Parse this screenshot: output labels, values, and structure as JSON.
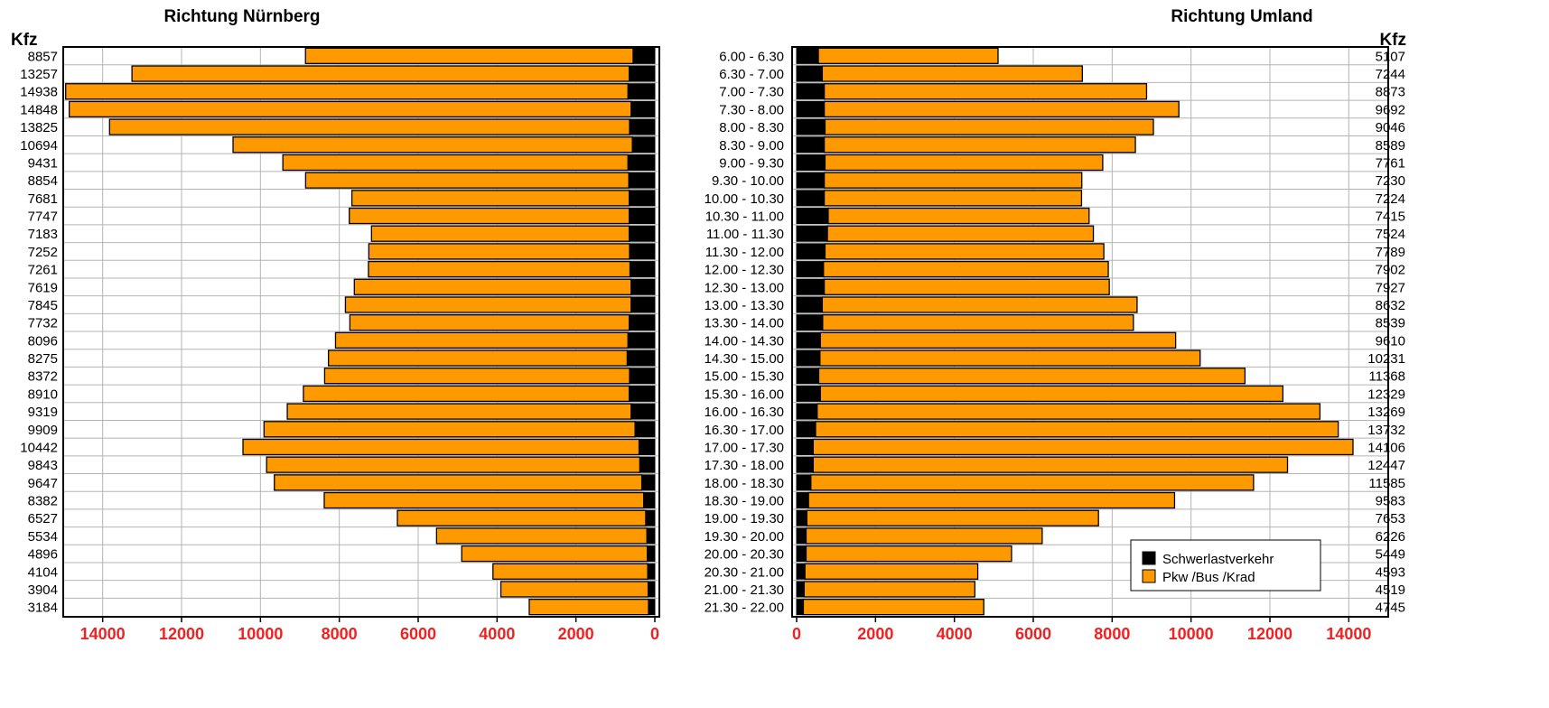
{
  "colors": {
    "schwerlast": "#000000",
    "pkw": "#ff9900",
    "tick_label": "#ee2222",
    "grid": "#b4b4b4"
  },
  "chart_data": [
    {
      "type": "bar",
      "orientation": "horizontal-diverging",
      "title": "Richtung Nürnberg",
      "unit_label": "Kfz",
      "xlim": [
        15000,
        0
      ],
      "x_ticks": [
        "14000",
        "12000",
        "10000",
        "8000",
        "6000",
        "4000",
        "2000",
        "0"
      ],
      "categories": [
        "6.00 - 6.30",
        "6.30 - 7.00",
        "7.00 - 7.30",
        "7.30 - 8.00",
        "8.00 - 8.30",
        "8.30 - 9.00",
        "9.00 - 9.30",
        "9.30 - 10.00",
        "10.00 - 10.30",
        "10.30 - 11.00",
        "11.00 - 11.30",
        "11.30 - 12.00",
        "12.00 - 12.30",
        "12.30 - 13.00",
        "13.00 - 13.30",
        "13.30 - 14.00",
        "14.00 - 14.30",
        "14.30 - 15.00",
        "15.00 - 15.30",
        "15.30 - 16.00",
        "16.00 - 16.30",
        "16.30 - 17.00",
        "17.00 - 17.30",
        "17.30 - 18.00",
        "18.00 - 18.30",
        "18.30 - 19.00",
        "19.00 - 19.30",
        "19.30 - 20.00",
        "20.00 - 20.30",
        "20.30 - 21.00",
        "21.00 - 21.30",
        "21.30 - 22.00"
      ],
      "totals": [
        8857,
        13257,
        14938,
        14848,
        13825,
        10694,
        9431,
        8854,
        7681,
        7747,
        7183,
        7252,
        7261,
        7619,
        7845,
        7732,
        8096,
        8275,
        8372,
        8910,
        9319,
        9909,
        10442,
        9843,
        9647,
        8382,
        6527,
        5534,
        4896,
        4104,
        3904,
        3184
      ],
      "series": [
        {
          "name": "Schwerlastverkehr",
          "values": [
            550,
            650,
            680,
            600,
            640,
            570,
            680,
            660,
            650,
            650,
            650,
            640,
            630,
            600,
            600,
            650,
            680,
            700,
            640,
            650,
            600,
            500,
            400,
            380,
            330,
            280,
            230,
            200,
            190,
            180,
            170,
            160
          ]
        },
        {
          "name": "Pkw /Bus /Krad",
          "values": [
            8307,
            12607,
            14258,
            14248,
            13185,
            10124,
            8751,
            8194,
            7031,
            7097,
            6533,
            6612,
            6631,
            7019,
            7245,
            7082,
            7416,
            7575,
            7732,
            8260,
            8719,
            9409,
            10042,
            9463,
            9317,
            8102,
            6297,
            5334,
            4706,
            3924,
            3734,
            3024
          ]
        }
      ]
    },
    {
      "type": "bar",
      "orientation": "horizontal",
      "title": "Richtung Umland",
      "unit_label": "Kfz",
      "xlim": [
        0,
        15000
      ],
      "x_ticks": [
        "0",
        "2000",
        "4000",
        "6000",
        "8000",
        "10000",
        "12000",
        "14000"
      ],
      "categories": [
        "6.00 - 6.30",
        "6.30 - 7.00",
        "7.00 - 7.30",
        "7.30 - 8.00",
        "8.00 - 8.30",
        "8.30 - 9.00",
        "9.00 - 9.30",
        "9.30 - 10.00",
        "10.00 - 10.30",
        "10.30 - 11.00",
        "11.00 - 11.30",
        "11.30 - 12.00",
        "12.00 - 12.30",
        "12.30 - 13.00",
        "13.00 - 13.30",
        "13.30 - 14.00",
        "14.00 - 14.30",
        "14.30 - 15.00",
        "15.00 - 15.30",
        "15.30 - 16.00",
        "16.00 - 16.30",
        "16.30 - 17.00",
        "17.00 - 17.30",
        "17.30 - 18.00",
        "18.00 - 18.30",
        "18.30 - 19.00",
        "19.00 - 19.30",
        "19.30 - 20.00",
        "20.00 - 20.30",
        "20.30 - 21.00",
        "21.00 - 21.30",
        "21.30 - 22.00"
      ],
      "totals": [
        5107,
        7244,
        8873,
        9692,
        9046,
        8589,
        7761,
        7230,
        7224,
        7415,
        7524,
        7789,
        7902,
        7927,
        8632,
        8539,
        9610,
        10231,
        11368,
        12329,
        13269,
        13732,
        14106,
        12447,
        11585,
        9583,
        7653,
        6226,
        5449,
        4593,
        4519,
        4745
      ],
      "series": [
        {
          "name": "Schwerlastverkehr",
          "values": [
            550,
            650,
            700,
            700,
            720,
            700,
            720,
            700,
            700,
            800,
            780,
            720,
            680,
            700,
            650,
            660,
            600,
            590,
            560,
            600,
            520,
            480,
            420,
            420,
            360,
            300,
            260,
            240,
            240,
            210,
            190,
            170
          ]
        },
        {
          "name": "Pkw /Bus /Krad",
          "values": [
            4557,
            6594,
            8173,
            8992,
            8326,
            7889,
            7041,
            6530,
            6524,
            6615,
            6744,
            7069,
            7222,
            7227,
            7982,
            7879,
            9010,
            9641,
            10808,
            11729,
            12749,
            13252,
            13686,
            12027,
            11225,
            9283,
            7393,
            5986,
            5209,
            4383,
            4329,
            4575
          ]
        }
      ],
      "legend": {
        "placement": "bottom-right",
        "entries": [
          "Schwerlastverkehr",
          "Pkw /Bus /Krad"
        ]
      }
    }
  ]
}
